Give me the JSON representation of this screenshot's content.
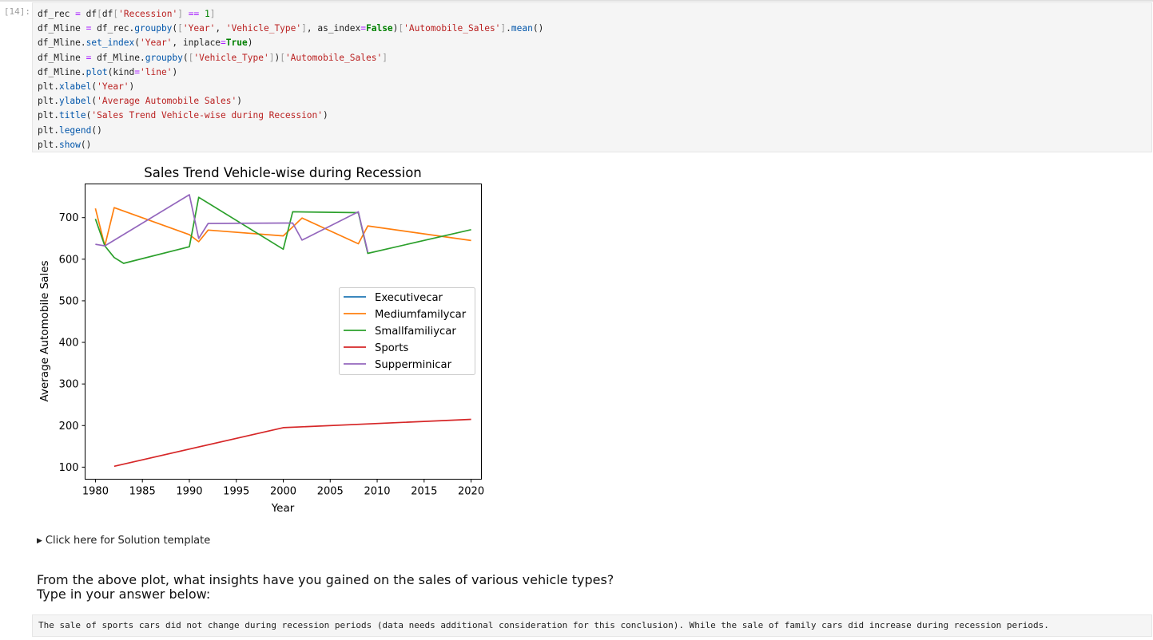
{
  "notebook": {
    "prompt": "[14]:",
    "details_label": "Click here for Solution template",
    "question_line1": "From the above plot, what insights have you gained on the sales of various vehicle types?",
    "question_line2": "Type in your answer below:",
    "answer": "The sale of sports cars did not change during recession periods (data needs additional consideration for this conclusion). While the sale of family cars did increase during recession periods."
  },
  "code_lines": [
    "df_rec = df[df['Recession'] == 1]",
    "df_Mline = df_rec.groupby(['Year', 'Vehicle_Type'], as_index=False)['Automobile_Sales'].mean()",
    "df_Mline.set_index('Year', inplace=True)",
    "df_Mline = df_Mline.groupby(['Vehicle_Type'])['Automobile_Sales']",
    "df_Mline.plot(kind='line')",
    "plt.xlabel('Year')",
    "plt.ylabel('Average Automobile Sales')",
    "plt.title('Sales Trend Vehicle-wise during Recession')",
    "plt.legend()",
    "plt.show()"
  ],
  "chart_data": {
    "type": "line",
    "title": "Sales Trend Vehicle-wise during Recession",
    "xlabel": "Year",
    "ylabel": "Average Automobile Sales",
    "xlim": [
      1978.9,
      2021.1
    ],
    "ylim": [
      71,
      781
    ],
    "xticks": [
      1980,
      1985,
      1990,
      1995,
      2000,
      2005,
      2010,
      2015,
      2020
    ],
    "yticks": [
      100,
      200,
      300,
      400,
      500,
      600,
      700
    ],
    "grid": false,
    "legend_position": "center-right",
    "series": [
      {
        "name": "Executivecar",
        "color": "#1f77b4",
        "x": [],
        "y": []
      },
      {
        "name": "Mediumfamilycar",
        "color": "#ff7f0e",
        "x": [
          1980,
          1981,
          1982,
          1990,
          1991,
          1992,
          2000,
          2002,
          2008,
          2009,
          2020
        ],
        "y": [
          722,
          632,
          724,
          659,
          642,
          670,
          656,
          699,
          637,
          680,
          645
        ]
      },
      {
        "name": "Smallfamiliycar",
        "color": "#2ca02c",
        "x": [
          1980,
          1981,
          1982,
          1983,
          1990,
          1991,
          2000,
          2001,
          2008,
          2009,
          2020
        ],
        "y": [
          697,
          632,
          604,
          590,
          630,
          749,
          624,
          714,
          712,
          614,
          671
        ]
      },
      {
        "name": "Sports",
        "color": "#d62728",
        "x": [
          1982,
          2000,
          2020
        ],
        "y": [
          102,
          195,
          215
        ]
      },
      {
        "name": "Supperminicar",
        "color": "#9467bd",
        "x": [
          1980,
          1981,
          1990,
          1991,
          1992,
          2000,
          2001,
          2002,
          2008,
          2009
        ],
        "y": [
          636,
          632,
          755,
          650,
          686,
          687,
          687,
          646,
          714,
          617
        ]
      }
    ]
  }
}
